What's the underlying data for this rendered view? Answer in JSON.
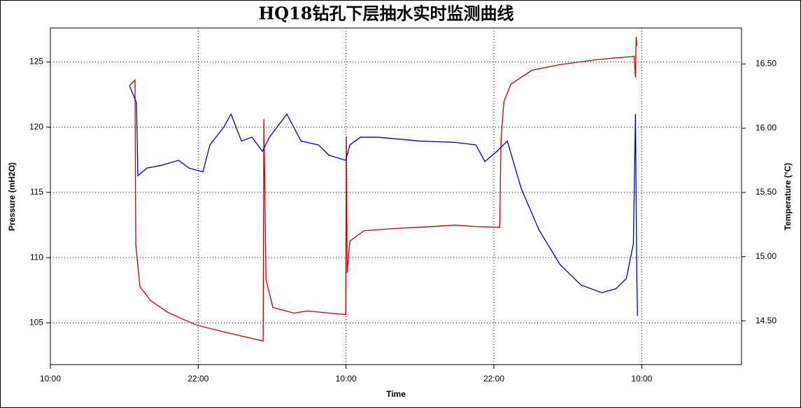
{
  "chart_data": {
    "type": "line",
    "title": "HQ18钻孔下层抽水实时监测曲线",
    "x_label": "Time",
    "y_label": "Pressure (mH2O)",
    "y2_label": "Temperature (°C)",
    "xlim": [
      0,
      56.1
    ],
    "xticks": [
      {
        "value": 0,
        "label": "10:00"
      },
      {
        "value": 12,
        "label": "22:00"
      },
      {
        "value": 24,
        "label": "10:00"
      },
      {
        "value": 36,
        "label": "22:00"
      },
      {
        "value": 48,
        "label": "10:00"
      }
    ],
    "ylim": [
      101.8,
      127.6
    ],
    "yticks": [
      105,
      110,
      115,
      120,
      125
    ],
    "y2lim": [
      14.16,
      16.78
    ],
    "y2ticks": [
      {
        "value": 14.5,
        "label": "14.50"
      },
      {
        "value": 15,
        "label": "15.00"
      },
      {
        "value": 15.5,
        "label": "15.50"
      },
      {
        "value": 16,
        "label": "16.00"
      },
      {
        "value": 16.5,
        "label": "16.50"
      }
    ],
    "grid": true,
    "series": [
      {
        "color": "#c00000",
        "axis": "y",
        "x": [
          6.42,
          6.87,
          6.93,
          7.27,
          8.12,
          9.54,
          11.81,
          14.09,
          15.79,
          17.27,
          17.33,
          17.5,
          18.06,
          19.77,
          20.9,
          22.61,
          23.97,
          24.03,
          24.09,
          24.31,
          25.45,
          27.72,
          29.99,
          32.83,
          34.54,
          36.47,
          36.58,
          36.81,
          37.38,
          39.09,
          41.36,
          44.2,
          47.38,
          47.49,
          47.55,
          47.6
        ],
        "values": [
          123.18,
          123.61,
          111.0,
          107.78,
          106.71,
          105.8,
          104.84,
          104.3,
          103.93,
          103.61,
          120.61,
          108.32,
          106.18,
          105.75,
          105.91,
          105.75,
          105.64,
          119.28,
          108.85,
          111.26,
          112.06,
          112.22,
          112.33,
          112.49,
          112.38,
          112.33,
          119.01,
          121.95,
          123.29,
          124.36,
          124.79,
          125.16,
          125.43,
          123.82,
          126.93,
          126.23
        ]
      },
      {
        "color": "#0000b0",
        "axis": "y2",
        "x": [
          6.42,
          6.99,
          7.1,
          7.84,
          8.97,
          10.4,
          11.25,
          12.38,
          12.95,
          14.09,
          14.66,
          15.51,
          16.36,
          17.21,
          17.78,
          19.2,
          20.34,
          21.76,
          22.61,
          23.97,
          24.31,
          25.16,
          26.58,
          29.99,
          32.83,
          34.54,
          35.27,
          36.24,
          37.09,
          38.22,
          39.65,
          41.36,
          43.06,
          44.76,
          45.9,
          46.75,
          47.32,
          47.49,
          47.6,
          47.66
        ],
        "values": [
          16.33,
          16.2,
          15.63,
          15.69,
          15.71,
          15.75,
          15.69,
          15.66,
          15.87,
          16.01,
          16.11,
          15.9,
          15.93,
          15.82,
          15.93,
          16.11,
          15.9,
          15.87,
          15.79,
          15.75,
          15.87,
          15.93,
          15.93,
          15.9,
          15.89,
          15.87,
          15.74,
          15.82,
          15.9,
          15.53,
          15.21,
          14.94,
          14.78,
          14.72,
          14.75,
          14.83,
          15.1,
          16.11,
          14.83,
          14.54
        ]
      }
    ]
  }
}
